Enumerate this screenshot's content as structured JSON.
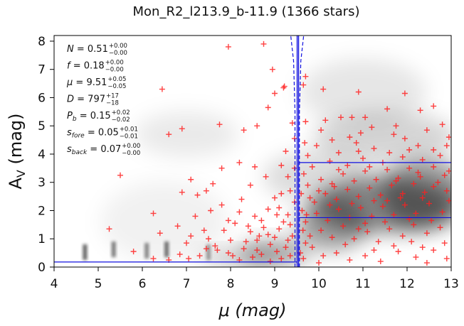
{
  "chart_data": {
    "type": "scatter",
    "title": "Mon_R2_l213.9_b-11.9 (1366 stars)",
    "xlabel": "μ (mag)",
    "ylabel_main": "A",
    "ylabel_sub": "V",
    "ylabel_unit": " (mag)",
    "xlim": [
      4,
      13
    ],
    "ylim": [
      0,
      8.2
    ],
    "xticks": [
      "4",
      "5",
      "6",
      "7",
      "8",
      "9",
      "10",
      "11",
      "12",
      "13"
    ],
    "yticks": [
      "0",
      "1",
      "2",
      "3",
      "4",
      "5",
      "6",
      "7",
      "8"
    ],
    "colors": {
      "points": "#ff2020",
      "fit_lines": "#1010e0",
      "background": "#000000"
    },
    "annotations": [
      {
        "symbol": "N",
        "value": "0.51",
        "upper": "+0.00",
        "lower": "−0.00"
      },
      {
        "symbol": "f",
        "value": "0.18",
        "upper": "+0.00",
        "lower": "−0.00"
      },
      {
        "symbol": "μ",
        "value": "9.51",
        "upper": "+0.05",
        "lower": "−0.05"
      },
      {
        "symbol": "D",
        "value": "797",
        "upper": "+17",
        "lower": "−18"
      },
      {
        "symbol": "P",
        "sub": "b",
        "value": "0.15",
        "upper": "+0.02",
        "lower": "−0.02"
      },
      {
        "symbol": "s",
        "sub": "fore",
        "value": "0.05",
        "upper": "+0.01",
        "lower": "−0.01"
      },
      {
        "symbol": "s",
        "sub": "back",
        "value": "0.07",
        "upper": "+0.00",
        "lower": "−0.00"
      }
    ],
    "fit": {
      "distance_modulus": 9.51,
      "err": 0.05,
      "foreground_extinction": 0.18,
      "background_extinction_levels": [
        1.75,
        3.7
      ]
    },
    "density_background": [
      {
        "x": 11.5,
        "y": 2.2,
        "sx": 1.8,
        "sy": 1.1,
        "a": 0.85
      },
      {
        "x": 12.4,
        "y": 2.6,
        "sx": 1.1,
        "sy": 1.4,
        "a": 0.7
      },
      {
        "x": 10.3,
        "y": 1.5,
        "sx": 0.9,
        "sy": 1.0,
        "a": 0.7
      },
      {
        "x": 9.0,
        "y": 0.5,
        "sx": 0.9,
        "sy": 0.5,
        "a": 0.65
      },
      {
        "x": 8.2,
        "y": 0.3,
        "sx": 1.0,
        "sy": 0.35,
        "a": 0.4
      },
      {
        "x": 11.5,
        "y": 4.6,
        "sx": 1.8,
        "sy": 1.0,
        "a": 0.3
      },
      {
        "x": 11.0,
        "y": 6.2,
        "sx": 1.6,
        "sy": 1.3,
        "a": 0.18
      },
      {
        "x": 7.0,
        "y": 4.7,
        "sx": 1.3,
        "sy": 0.9,
        "a": 0.15
      },
      {
        "x": 6.5,
        "y": 1.6,
        "sx": 1.6,
        "sy": 1.6,
        "a": 0.1
      },
      {
        "x": 10.0,
        "y": 3.2,
        "sx": 1.4,
        "sy": 1.0,
        "a": 0.25
      }
    ],
    "density_streaks": [
      {
        "x": 4.7,
        "y": 0.25,
        "a": 0.6
      },
      {
        "x": 5.35,
        "y": 0.35,
        "a": 0.5
      },
      {
        "x": 6.1,
        "y": 0.3,
        "a": 0.45
      },
      {
        "x": 6.55,
        "y": 0.35,
        "a": 0.55
      },
      {
        "x": 7.5,
        "y": 0.25,
        "a": 0.35
      }
    ],
    "points": [
      [
        8.75,
        7.9
      ],
      [
        7.95,
        7.8
      ],
      [
        8.95,
        7.0
      ],
      [
        9.7,
        6.75
      ],
      [
        9.65,
        6.45
      ],
      [
        9.2,
        6.35
      ],
      [
        9.22,
        6.4
      ],
      [
        6.45,
        6.3
      ],
      [
        10.1,
        6.3
      ],
      [
        9.0,
        6.15
      ],
      [
        10.9,
        6.2
      ],
      [
        11.95,
        6.15
      ],
      [
        8.85,
        5.65
      ],
      [
        12.6,
        5.7
      ],
      [
        11.55,
        5.6
      ],
      [
        12.3,
        5.55
      ],
      [
        10.5,
        5.3
      ],
      [
        11.05,
        5.3
      ],
      [
        10.75,
        5.3
      ],
      [
        10.15,
        5.2
      ],
      [
        9.7,
        5.15
      ],
      [
        7.75,
        5.05
      ],
      [
        8.6,
        5.0
      ],
      [
        9.4,
        5.1
      ],
      [
        6.9,
        4.9
      ],
      [
        8.3,
        4.85
      ],
      [
        6.6,
        4.7
      ],
      [
        12.95,
        4.6
      ],
      [
        11.7,
        4.7
      ],
      [
        11.2,
        4.95
      ],
      [
        10.3,
        4.5
      ],
      [
        10.85,
        4.4
      ],
      [
        12.25,
        4.3
      ],
      [
        10.9,
        4.1
      ],
      [
        11.6,
        4.05
      ],
      [
        12.6,
        4.15
      ],
      [
        8.2,
        3.7
      ],
      [
        7.8,
        3.5
      ],
      [
        8.55,
        3.55
      ],
      [
        9.15,
        3.6
      ],
      [
        9.3,
        3.2
      ],
      [
        8.8,
        3.2
      ],
      [
        5.5,
        3.25
      ],
      [
        7.1,
        3.1
      ],
      [
        7.6,
        2.95
      ],
      [
        6.9,
        2.65
      ],
      [
        7.45,
        2.7
      ],
      [
        7.25,
        2.55
      ],
      [
        8.45,
        2.9
      ],
      [
        8.25,
        2.4
      ],
      [
        7.8,
        2.2
      ],
      [
        7.55,
        2.0
      ],
      [
        7.2,
        1.8
      ],
      [
        6.25,
        1.9
      ],
      [
        8.2,
        1.95
      ],
      [
        8.55,
        1.8
      ],
      [
        9.1,
        2.1
      ],
      [
        9.0,
        2.45
      ],
      [
        8.85,
        2.05
      ],
      [
        6.8,
        1.45
      ],
      [
        6.4,
        1.2
      ],
      [
        5.25,
        1.35
      ],
      [
        7.1,
        1.1
      ],
      [
        7.5,
        1.0
      ],
      [
        7.85,
        1.3
      ],
      [
        8.1,
        1.55
      ],
      [
        8.45,
        1.25
      ],
      [
        8.75,
        1.4
      ],
      [
        9.1,
        1.35
      ],
      [
        8.6,
        0.95
      ],
      [
        8.9,
        0.8
      ],
      [
        9.3,
        0.95
      ],
      [
        9.05,
        0.55
      ],
      [
        8.7,
        0.45
      ],
      [
        8.3,
        0.65
      ],
      [
        7.95,
        0.5
      ],
      [
        7.65,
        0.75
      ],
      [
        7.3,
        0.4
      ],
      [
        6.85,
        0.45
      ],
      [
        5.8,
        0.55
      ],
      [
        6.6,
        0.25
      ],
      [
        6.25,
        0.3
      ],
      [
        7.05,
        0.3
      ],
      [
        8.2,
        0.25
      ],
      [
        8.5,
        0.35
      ],
      [
        8.9,
        0.2
      ],
      [
        9.15,
        0.3
      ],
      [
        9.35,
        0.4
      ],
      [
        9.25,
        0.7
      ],
      [
        9.4,
        1.1
      ],
      [
        9.35,
        1.5
      ],
      [
        9.3,
        1.85
      ],
      [
        9.45,
        2.3
      ],
      [
        9.35,
        2.7
      ],
      [
        9.45,
        3.5
      ],
      [
        9.25,
        4.1
      ],
      [
        9.45,
        4.55
      ],
      [
        9.15,
        2.6
      ],
      [
        9.0,
        1.05
      ],
      [
        8.65,
        1.1
      ],
      [
        8.35,
        0.9
      ],
      [
        8.0,
        0.95
      ],
      [
        7.7,
        0.6
      ],
      [
        7.45,
        0.65
      ],
      [
        8.05,
        0.4
      ],
      [
        8.6,
        0.6
      ],
      [
        8.85,
        1.15
      ],
      [
        9.2,
        1.6
      ],
      [
        9.05,
        1.85
      ],
      [
        8.7,
        1.65
      ],
      [
        8.4,
        1.45
      ],
      [
        7.95,
        1.65
      ],
      [
        7.4,
        1.3
      ],
      [
        7.0,
        0.85
      ],
      [
        9.65,
        0.3
      ],
      [
        9.85,
        0.7
      ],
      [
        10.1,
        0.4
      ],
      [
        10.4,
        0.5
      ],
      [
        10.7,
        0.25
      ],
      [
        11.05,
        0.4
      ],
      [
        11.4,
        0.2
      ],
      [
        11.8,
        0.55
      ],
      [
        12.2,
        0.35
      ],
      [
        12.6,
        0.6
      ],
      [
        12.9,
        0.3
      ],
      [
        12.45,
        0.15
      ],
      [
        9.8,
        1.1
      ],
      [
        10.05,
        1.3
      ],
      [
        10.3,
        1.05
      ],
      [
        10.55,
        1.45
      ],
      [
        10.8,
        1.0
      ],
      [
        11.1,
        1.25
      ],
      [
        11.35,
        0.9
      ],
      [
        11.6,
        1.35
      ],
      [
        11.9,
        1.1
      ],
      [
        12.15,
        1.5
      ],
      [
        12.45,
        1.2
      ],
      [
        12.75,
        1.4
      ],
      [
        9.7,
        1.6
      ],
      [
        9.95,
        1.9
      ],
      [
        10.2,
        1.65
      ],
      [
        10.45,
        2.05
      ],
      [
        10.7,
        1.75
      ],
      [
        10.95,
        2.1
      ],
      [
        11.2,
        1.8
      ],
      [
        11.45,
        2.15
      ],
      [
        11.7,
        1.85
      ],
      [
        11.95,
        2.2
      ],
      [
        12.2,
        1.9
      ],
      [
        12.5,
        2.25
      ],
      [
        12.8,
        1.95
      ],
      [
        12.95,
        2.35
      ],
      [
        9.9,
        2.3
      ],
      [
        10.15,
        2.6
      ],
      [
        10.4,
        2.4
      ],
      [
        10.65,
        2.75
      ],
      [
        10.9,
        2.5
      ],
      [
        11.15,
        2.8
      ],
      [
        11.4,
        2.55
      ],
      [
        11.65,
        2.9
      ],
      [
        11.9,
        2.6
      ],
      [
        12.15,
        2.95
      ],
      [
        12.4,
        2.65
      ],
      [
        12.7,
        3.0
      ],
      [
        12.9,
        2.7
      ],
      [
        9.75,
        2.9
      ],
      [
        10.05,
        3.1
      ],
      [
        10.3,
        2.95
      ],
      [
        10.55,
        3.3
      ],
      [
        10.8,
        3.05
      ],
      [
        11.05,
        3.4
      ],
      [
        11.3,
        3.1
      ],
      [
        11.55,
        3.45
      ],
      [
        11.8,
        3.15
      ],
      [
        12.05,
        3.5
      ],
      [
        12.3,
        3.2
      ],
      [
        12.6,
        3.55
      ],
      [
        12.85,
        3.25
      ],
      [
        9.85,
        3.55
      ],
      [
        10.25,
        3.75
      ],
      [
        10.65,
        3.6
      ],
      [
        11.0,
        3.85
      ],
      [
        11.45,
        3.7
      ],
      [
        11.9,
        3.9
      ],
      [
        12.35,
        3.8
      ],
      [
        12.75,
        3.95
      ],
      [
        10.45,
        4.05
      ],
      [
        11.25,
        4.2
      ],
      [
        12.05,
        4.15
      ],
      [
        12.9,
        4.3
      ],
      [
        9.95,
        4.3
      ],
      [
        10.7,
        4.6
      ],
      [
        11.95,
        4.55
      ],
      [
        12.45,
        4.85
      ],
      [
        10.05,
        4.85
      ],
      [
        10.95,
        4.75
      ],
      [
        11.75,
        5.0
      ],
      [
        12.8,
        5.05
      ],
      [
        9.75,
        3.95
      ],
      [
        9.68,
        4.4
      ],
      [
        9.62,
        2.0
      ],
      [
        9.6,
        2.6
      ],
      [
        9.66,
        3.3
      ],
      [
        9.64,
        1.3
      ],
      [
        9.7,
        0.85
      ],
      [
        9.58,
        0.5
      ],
      [
        10.0,
        0.15
      ],
      [
        10.6,
        0.8
      ],
      [
        11.25,
        0.6
      ],
      [
        11.7,
        0.75
      ],
      [
        12.1,
        0.9
      ],
      [
        12.35,
        0.7
      ],
      [
        12.85,
        0.85
      ],
      [
        11.5,
        1.6
      ],
      [
        11.05,
        1.55
      ],
      [
        10.9,
        1.35
      ],
      [
        10.25,
        2.2
      ],
      [
        11.55,
        2.35
      ],
      [
        12.35,
        2.45
      ],
      [
        12.55,
        1.65
      ],
      [
        12.05,
        1.7
      ],
      [
        11.85,
        2.45
      ],
      [
        10.75,
        2.25
      ],
      [
        10.35,
        2.85
      ],
      [
        11.25,
        2.35
      ],
      [
        11.75,
        3.05
      ],
      [
        12.6,
        2.85
      ],
      [
        12.95,
        3.4
      ],
      [
        12.25,
        3.35
      ],
      [
        11.15,
        3.55
      ],
      [
        10.45,
        3.45
      ],
      [
        10.0,
        2.7
      ],
      [
        9.8,
        2.45
      ],
      [
        9.72,
        1.85
      ]
    ]
  }
}
